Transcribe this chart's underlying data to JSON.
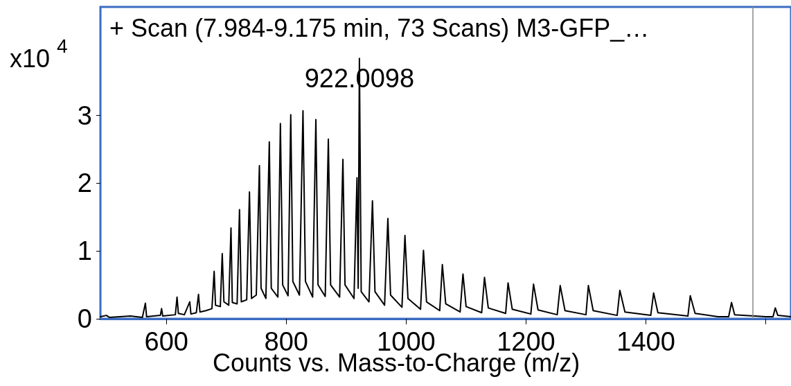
{
  "chart_data": {
    "type": "line",
    "title": "+ Scan (7.984-9.175 min, 73 Scans) M3-GFP_…",
    "xlabel": "Counts vs. Mass-to-Charge (m/z)",
    "ylabel": "x10$^{4}$",
    "xlim": [
      490,
      1642
    ],
    "xticks": [
      600,
      800,
      1000,
      1200,
      1400,
      {
        "value": 1600,
        "label": null
      }
    ],
    "ylim": [
      0,
      4.6
    ],
    "yticks": [
      0,
      1,
      2,
      3
    ],
    "grid": false,
    "marker": "none",
    "line_style": "solid",
    "ref_lines": [
      {
        "axis": "x",
        "value": 1578,
        "label": null,
        "color": "#888888"
      }
    ],
    "annotations": [
      {
        "text": "922.0098",
        "x": 922.0098,
        "y": 3.84
      }
    ],
    "series": [
      {
        "color": "#000000",
        "x": [
          490,
          500,
          505,
          540,
          560,
          565,
          567,
          590,
          592,
          594,
          615,
          617.8,
          620,
          630,
          639,
          641,
          650,
          653.6,
          656,
          666,
          676,
          679.7,
          682,
          690,
          693.2,
          696,
          704,
          707.8,
          710,
          718,
          722,
          725,
          734,
          738.6,
          742,
          750,
          755.2,
          758,
          766,
          771.7,
          775,
          786,
          790.2,
          794,
          803,
          807.5,
          811,
          822,
          827.9,
          832,
          844,
          849.4,
          853,
          865,
          870.2,
          874,
          889,
          894.5,
          898,
          913,
          918,
          920,
          922.0098,
          925,
          938,
          943.8,
          948,
          964,
          969.5,
          974,
          993,
          998,
          1003,
          1024,
          1028.9,
          1034,
          1056,
          1060.4,
          1066,
          1090,
          1094.8,
          1100,
          1126,
          1130.7,
          1137,
          1166,
          1170,
          1177,
          1208,
          1212.5,
          1220,
          1252,
          1257,
          1265,
          1300,
          1304,
          1312,
          1352,
          1356.5,
          1365,
          1408,
          1412.8,
          1420,
          1470,
          1474,
          1482,
          1520,
          1538,
          1542.8,
          1548,
          1600,
          1612,
          1615.8,
          1620,
          1642
        ],
        "values": [
          0.03,
          0.05,
          0.02,
          0.04,
          0.02,
          0.23,
          0.03,
          0.05,
          0.15,
          0.04,
          0.06,
          0.32,
          0.08,
          0.06,
          0.25,
          0.07,
          0.09,
          0.36,
          0.1,
          0.12,
          0.15,
          0.7,
          0.2,
          0.18,
          0.96,
          0.25,
          0.2,
          1.34,
          0.24,
          0.22,
          1.61,
          0.25,
          0.28,
          1.87,
          0.3,
          0.35,
          2.26,
          0.45,
          0.3,
          2.61,
          0.45,
          0.32,
          2.88,
          0.5,
          0.34,
          3.01,
          0.55,
          0.35,
          3.07,
          0.55,
          0.32,
          2.94,
          0.5,
          0.33,
          2.65,
          0.5,
          0.32,
          2.35,
          0.5,
          0.3,
          2.08,
          0.45,
          3.84,
          0.4,
          0.25,
          1.74,
          0.4,
          0.2,
          1.48,
          0.35,
          0.17,
          1.23,
          0.3,
          0.14,
          1.01,
          0.25,
          0.12,
          0.8,
          0.22,
          0.1,
          0.66,
          0.18,
          0.09,
          0.61,
          0.16,
          0.08,
          0.53,
          0.14,
          0.07,
          0.51,
          0.13,
          0.06,
          0.49,
          0.12,
          0.06,
          0.49,
          0.12,
          0.05,
          0.42,
          0.1,
          0.05,
          0.38,
          0.09,
          0.04,
          0.34,
          0.08,
          0.03,
          0.03,
          0.24,
          0.06,
          0.03,
          0.03,
          0.16,
          0.05,
          0.03
        ]
      }
    ]
  }
}
